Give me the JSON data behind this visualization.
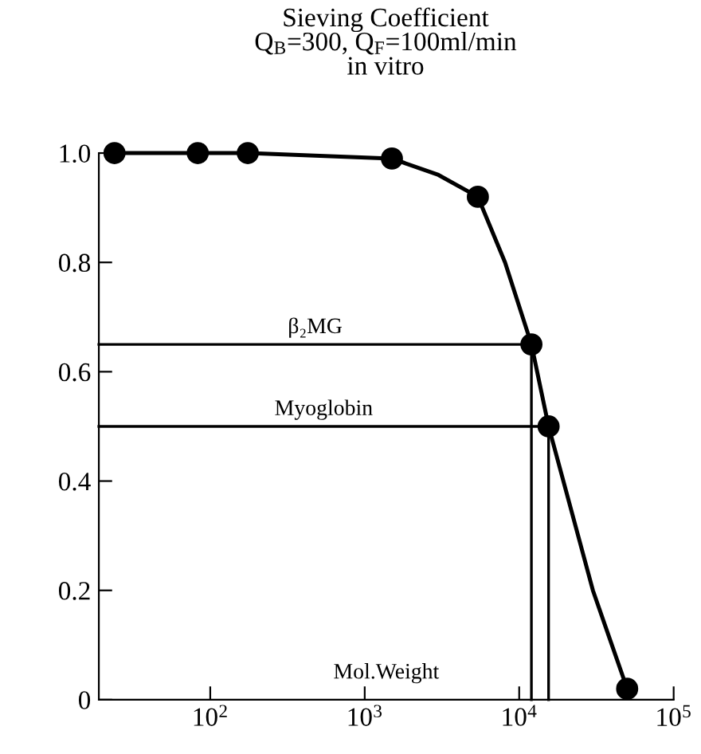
{
  "chart_data": {
    "type": "line",
    "title": "Sieving Coefficient",
    "subtitle": "Q$_{B}$=300, Q$_{F}$=100ml/min\nin vitro",
    "xlabel": "Mol.Weight",
    "log": "x",
    "xlim": [
      19,
      100000
    ],
    "xticks": [
      {
        "value": 100,
        "label": "10$^{2}$"
      },
      {
        "value": 1000,
        "label": "10$^{3}$"
      },
      {
        "value": 10000,
        "label": "10$^{4}$"
      },
      {
        "value": 100000,
        "label": "10$^{5}$"
      }
    ],
    "ylim": [
      0,
      1.0
    ],
    "yticks": [
      0,
      0.2,
      0.4,
      0.6,
      0.8,
      {
        "value": 1.0,
        "label": "1.0"
      }
    ],
    "grid": false,
    "line_style": "solid",
    "series": [
      {
        "marker": "none",
        "color": "#000000",
        "x": [
          24,
          83,
          175,
          1500,
          3000,
          5400,
          8100,
          12000,
          15500,
          30000,
          50000
        ],
        "values": [
          1.0,
          1.0,
          1.0,
          0.99,
          0.96,
          0.92,
          0.8,
          0.65,
          0.5,
          0.2,
          0.02
        ]
      },
      {
        "type": "scatter",
        "marker": "circle",
        "color": "#000000",
        "x": [
          24,
          83,
          175,
          1500,
          5400,
          12000,
          15500,
          50000
        ],
        "values": [
          1.0,
          1.0,
          1.0,
          0.99,
          0.92,
          0.65,
          0.5,
          0.02
        ]
      },
      {
        "marker": "none",
        "name": "β₂MG",
        "color": "#000000",
        "x": [
          19,
          12000,
          12000
        ],
        "values": [
          0.65,
          0.65,
          0
        ]
      },
      {
        "marker": "none",
        "name": "Myoglobin",
        "color": "#000000",
        "x": [
          19,
          15500,
          15500
        ],
        "values": [
          0.5,
          0.5,
          0
        ]
      }
    ]
  }
}
